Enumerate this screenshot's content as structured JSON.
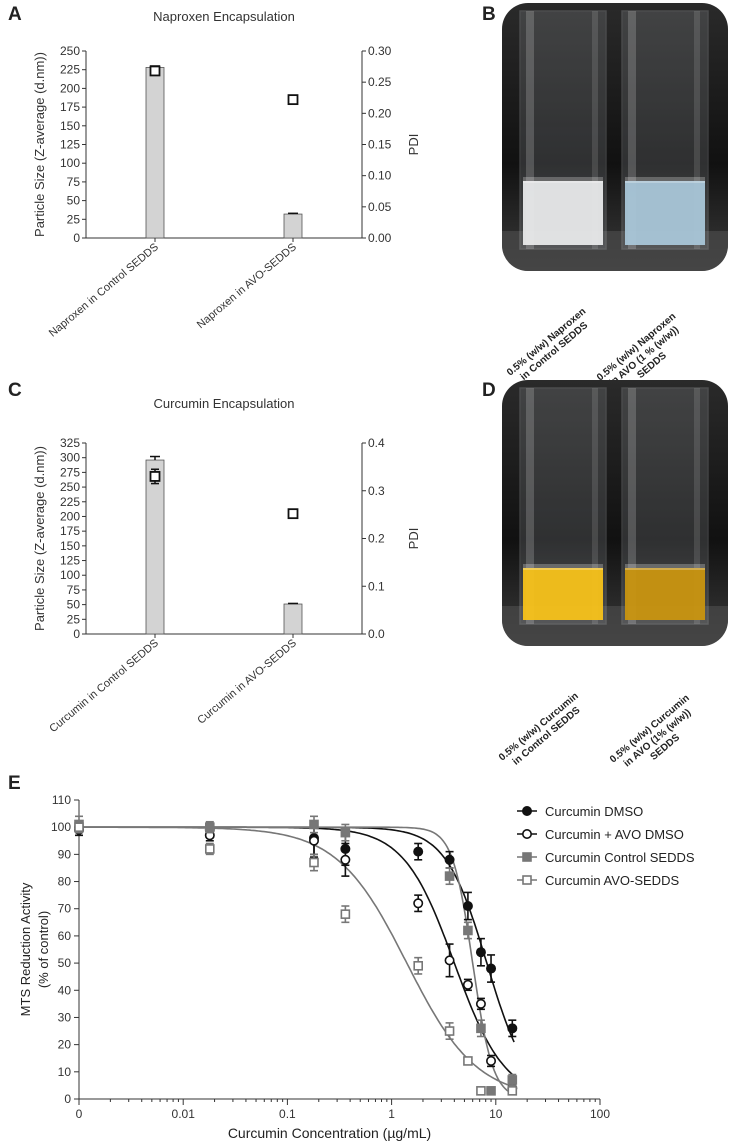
{
  "panels": {
    "A": "A",
    "B": "B",
    "C": "C",
    "D": "D",
    "E": "E"
  },
  "photo_B": {
    "captions": [
      [
        "0.5% (w/w) Naproxen",
        "in Control SEDDS"
      ],
      [
        "0.5% (w/w) Naproxen",
        "in AVO (1 % (w/w))",
        "SEDDS"
      ]
    ],
    "colors": {
      "left_liquid": "#e8e9ea",
      "right_liquid": "#a9c6d8"
    }
  },
  "photo_D": {
    "captions": [
      [
        "0.5% (w/w) Curcumin",
        "in Control SEDDS"
      ],
      [
        "0.5% (w/w) Curcumin",
        "in AVO (1% (w/w))",
        "SEDDS"
      ]
    ],
    "colors": {
      "left_liquid": "#f7c21a",
      "right_liquid": "#c99510"
    }
  },
  "chart_data": [
    {
      "id": "A",
      "type": "bar",
      "title": "Naproxen Encapsulation",
      "ylabel": "Particle Size (Z-average (d.nm))",
      "y2label": "PDI",
      "categories": [
        "Naproxen in Control SEDDS",
        "Naproxen in AVO-SEDDS"
      ],
      "ylim": [
        0,
        250
      ],
      "yticks": [
        0,
        25,
        50,
        75,
        100,
        125,
        150,
        175,
        200,
        225,
        250
      ],
      "y2lim": [
        0,
        0.3
      ],
      "y2ticks": [
        "0.00",
        "0.05",
        "0.10",
        "0.15",
        "0.20",
        "0.25",
        "0.30"
      ],
      "bar_values": [
        228,
        32
      ],
      "bar_errors": [
        2,
        1
      ],
      "pdi_values": [
        0.268,
        0.222
      ],
      "pdi_errors": [
        0.005,
        0.003
      ]
    },
    {
      "id": "C",
      "type": "bar",
      "title": "Curcumin Encapsulation",
      "ylabel": "Particle Size (Z-average (d.nm))",
      "y2label": "PDI",
      "categories": [
        "Curcumin in Control SEDDS",
        "Curcumin in AVO-SEDDS"
      ],
      "ylim": [
        0,
        325
      ],
      "yticks": [
        0,
        25,
        50,
        75,
        100,
        125,
        150,
        175,
        200,
        225,
        250,
        275,
        300,
        325
      ],
      "y2lim": [
        0,
        0.4
      ],
      "y2ticks": [
        "0.0",
        "0.1",
        "0.2",
        "0.3",
        "0.4"
      ],
      "bar_values": [
        296,
        51
      ],
      "bar_errors": [
        6,
        1
      ],
      "pdi_values": [
        0.33,
        0.252
      ],
      "pdi_errors": [
        0.015,
        0.008
      ]
    },
    {
      "id": "E",
      "type": "scatter",
      "xlabel": "Curcumin Concentration  (µg/mL)",
      "ylabel": [
        "MTS Reduction Activity",
        "(% of control)"
      ],
      "xscale": "log",
      "xlim": [
        0.001,
        100
      ],
      "xticks": [
        {
          "v": 0.001,
          "label": "0"
        },
        {
          "v": 0.01,
          "label": "0.01"
        },
        {
          "v": 0.1,
          "label": "0.1"
        },
        {
          "v": 1,
          "label": "1"
        },
        {
          "v": 10,
          "label": "10"
        },
        {
          "v": 100,
          "label": "100"
        }
      ],
      "ylim": [
        0,
        110
      ],
      "yticks": [
        0,
        10,
        20,
        30,
        40,
        50,
        60,
        70,
        80,
        90,
        100,
        110
      ],
      "legend_position": "top-right",
      "series": [
        {
          "name": "Curcumin DMSO",
          "marker": "filled-circle",
          "color": "#111111",
          "points": [
            [
              0.001,
              100,
              2
            ],
            [
              0.018,
              99,
              2
            ],
            [
              0.18,
              96,
              6
            ],
            [
              0.36,
              92,
              6
            ],
            [
              1.8,
              91,
              3
            ],
            [
              3.6,
              88,
              3
            ],
            [
              5.4,
              71,
              5
            ],
            [
              7.2,
              54,
              5
            ],
            [
              9.0,
              48,
              5
            ],
            [
              14.4,
              26,
              3
            ]
          ],
          "curve": {
            "top": 100,
            "bottom": 0,
            "ec50": 8.2,
            "hill": 2.2
          }
        },
        {
          "name": "Curcumin + AVO DMSO",
          "marker": "open-circle",
          "color": "#111111",
          "points": [
            [
              0.001,
              99,
              2
            ],
            [
              0.018,
              97,
              2
            ],
            [
              0.18,
              95,
              6
            ],
            [
              0.36,
              88,
              6
            ],
            [
              1.8,
              72,
              3
            ],
            [
              3.6,
              51,
              6
            ],
            [
              5.4,
              42,
              2
            ],
            [
              7.2,
              35,
              2
            ],
            [
              9.0,
              14,
              2
            ],
            [
              14.4,
              4,
              2
            ]
          ],
          "curve": {
            "top": 100,
            "bottom": 0,
            "ec50": 4.0,
            "hill": 1.8
          }
        },
        {
          "name": "Curcumin Control SEDDS",
          "marker": "filled-square",
          "color": "#777777",
          "points": [
            [
              0.001,
              101,
              3
            ],
            [
              0.018,
              100,
              2
            ],
            [
              0.18,
              101,
              3
            ],
            [
              0.36,
              98,
              3
            ],
            [
              3.6,
              82,
              3
            ],
            [
              5.4,
              62,
              3
            ],
            [
              7.2,
              26,
              3
            ],
            [
              9.0,
              3,
              1
            ],
            [
              14.4,
              7,
              2
            ]
          ],
          "curve": {
            "top": 100,
            "bottom": 0,
            "ec50": 6.0,
            "hill": 4.5
          }
        },
        {
          "name": "Curcumin AVO-SEDDS",
          "marker": "open-square",
          "color": "#777777",
          "points": [
            [
              0.001,
              100,
              2
            ],
            [
              0.018,
              92,
              2
            ],
            [
              0.18,
              87,
              3
            ],
            [
              0.36,
              68,
              3
            ],
            [
              1.8,
              49,
              3
            ],
            [
              3.6,
              25,
              3
            ],
            [
              5.4,
              14,
              1
            ],
            [
              7.2,
              3,
              1
            ],
            [
              14.4,
              3,
              1
            ]
          ],
          "curve": {
            "top": 100,
            "bottom": 0,
            "ec50": 1.4,
            "hill": 1.3
          }
        }
      ]
    }
  ]
}
